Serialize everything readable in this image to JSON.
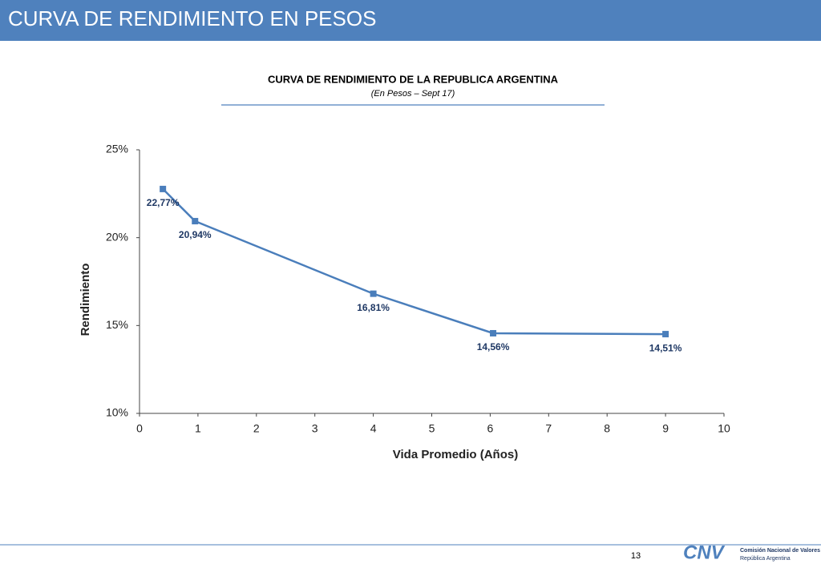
{
  "slide": {
    "title": "CURVA DE RENDIMIENTO EN PESOS",
    "page": "13",
    "logo": "CNV",
    "org": "Comisión Nacional de Valores",
    "country": "República Argentina"
  },
  "chart_data": {
    "type": "line",
    "title": "CURVA DE RENDIMIENTO DE LA REPUBLICA ARGENTINA",
    "subtitle": "(En Pesos – Sept 17)",
    "x_label": "Vida Promedio (Años)",
    "y_label": "Rendimiento",
    "x": [
      0.4,
      0.95,
      4,
      6.05,
      9
    ],
    "series": [
      {
        "name": "Rendimiento",
        "color": "#4a7ebb",
        "values": [
          22.77,
          20.94,
          16.81,
          14.56,
          14.51
        ],
        "value_labels": [
          "22,77%",
          "20,94%",
          "16,81%",
          "14,56%",
          "14,51%"
        ]
      }
    ],
    "xlim": [
      0,
      10
    ],
    "xticks": [
      0,
      1,
      2,
      3,
      4,
      5,
      6,
      7,
      8,
      9,
      10
    ],
    "ylim": [
      10,
      25
    ],
    "yticks": [
      {
        "value": 10,
        "label": "10%"
      },
      {
        "value": 15,
        "label": "15%"
      },
      {
        "value": 20,
        "label": "20%"
      },
      {
        "value": 25,
        "label": "25%"
      }
    ],
    "grid": false
  }
}
